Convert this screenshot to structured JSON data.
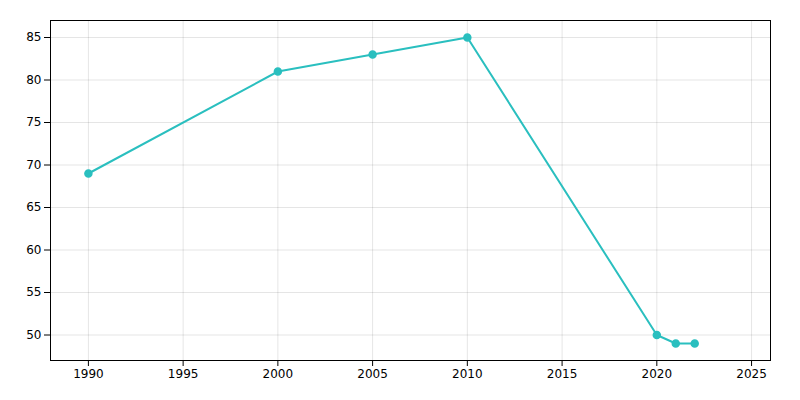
{
  "chart_data": {
    "type": "line",
    "x": [
      1990,
      2000,
      2005,
      2010,
      2020,
      2021,
      2022
    ],
    "values": [
      69,
      81,
      83,
      85,
      50,
      49,
      49
    ],
    "color": "#2abfbf",
    "marker": "circle",
    "xlim": [
      1988,
      2026
    ],
    "ylim": [
      47,
      87
    ],
    "xticks": [
      1990,
      1995,
      2000,
      2005,
      2010,
      2015,
      2020,
      2025
    ],
    "yticks": [
      50,
      55,
      60,
      65,
      70,
      75,
      80,
      85
    ],
    "grid": true
  }
}
